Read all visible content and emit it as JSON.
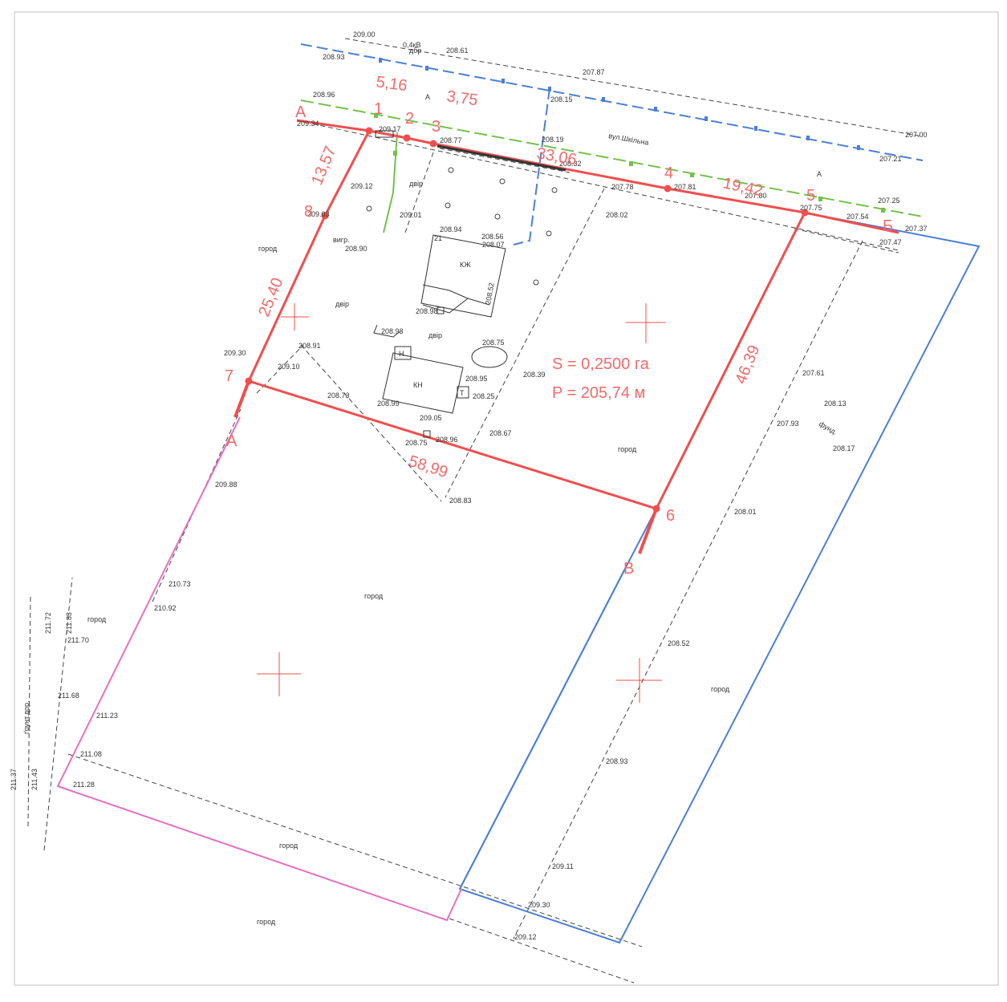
{
  "colors": {
    "parcel": "#f04e4e",
    "label": "#f26a6a",
    "neighbor_blue": "#4a7fd6",
    "neighbor_pink": "#e86fbf",
    "street_green": "#72c24a",
    "power_line": "#4a7fd6",
    "ink": "#333333",
    "dashed": "#444444"
  },
  "street": {
    "name": "вул.Шкільна"
  },
  "area": {
    "s": "S = 0,2500 га",
    "p": "P = 205,74 м"
  },
  "points": [
    {
      "id": "pt-1",
      "label": "1"
    },
    {
      "id": "pt-2",
      "label": "2"
    },
    {
      "id": "pt-3",
      "label": "3"
    },
    {
      "id": "pt-4",
      "label": "4"
    },
    {
      "id": "pt-5",
      "label": "5"
    },
    {
      "id": "pt-6",
      "label": "6"
    },
    {
      "id": "pt-7",
      "label": "7"
    },
    {
      "id": "pt-8",
      "label": "8"
    }
  ],
  "letters": {
    "a1": "А",
    "b": "Б",
    "v": "В",
    "a2": "А",
    "a_top": "А",
    "a_right": "А"
  },
  "dimensions": [
    "5,16",
    "3,75",
    "33,06",
    "19,42",
    "13,57",
    "25,40",
    "46,39",
    "58,99"
  ],
  "buildings": {
    "main": "КЖ",
    "main_num": "21",
    "kn": "КН",
    "n": "Н",
    "t": "Т"
  },
  "labels": {
    "gbir1": "двір",
    "gbir2": "двір",
    "gbir3": "двір",
    "gorod1": "город",
    "gorod2": "город",
    "gorod3": "город",
    "gorod4": "город",
    "gorod5": "город",
    "gorod6": "город",
    "gorod7": "город",
    "vygr": "вигр.",
    "fund": "фунд.",
    "road": "ґрунт.дор.",
    "power": "0,4кВ",
    "power2": "дбр"
  },
  "elevations": [
    "209.00",
    "208.61",
    "208.93",
    "207.87",
    "208.96",
    "208.15",
    "207.00",
    "209.34",
    "209.17",
    "208.77",
    "208.19",
    "208.32",
    "207.21",
    "209.12",
    "207.78",
    "207.81",
    "207.80",
    "207.25",
    "209.03",
    "209.01",
    "208.02",
    "207.75",
    "207.54",
    "207.37",
    "208.94",
    "208.56",
    "208.07",
    "207.47",
    "208.90",
    "208.52",
    "208.98",
    "208.93",
    "208.75",
    "209.30",
    "208.91",
    "209.10",
    "208.95",
    "208.39",
    "207.61",
    "208.73",
    "208.99",
    "208.25",
    "209.05",
    "208.13",
    "207.93",
    "208.67",
    "208.96",
    "208.75",
    "208.17",
    "209.88",
    "208.83",
    "208.01",
    "210.73",
    "210.92",
    "211.72",
    "211.83",
    "211.70",
    "208.52",
    "211.68",
    "211.23",
    "211.08",
    "208.93",
    "211.37",
    "211.43",
    "211.28",
    "209.11",
    "209.30",
    "209.12"
  ]
}
